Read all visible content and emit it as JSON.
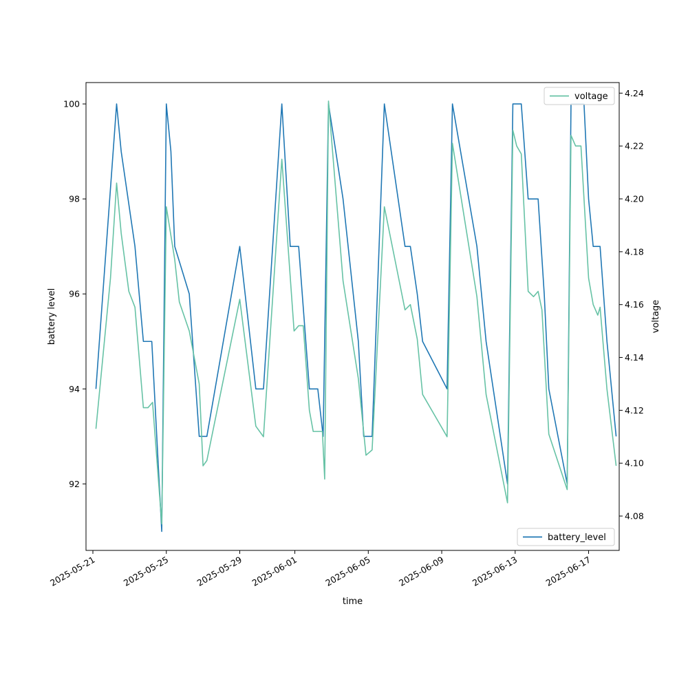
{
  "chart_data": {
    "type": "line",
    "xlabel": "time",
    "y1label": "battery level",
    "y2label": "voltage",
    "xlim": [
      "2025-05-20T15:00",
      "2025-06-18T16:00"
    ],
    "y1lim": [
      90.6,
      100.45
    ],
    "y2lim": [
      4.067,
      4.244
    ],
    "x_ticks": [
      "2025-05-21",
      "2025-05-25",
      "2025-05-29",
      "2025-06-01",
      "2025-06-05",
      "2025-06-09",
      "2025-06-13",
      "2025-06-17"
    ],
    "y1_ticks": [
      92,
      94,
      96,
      98,
      100
    ],
    "y2_ticks": [
      "4.08",
      "4.10",
      "4.12",
      "4.14",
      "4.16",
      "4.18",
      "4.20",
      "4.22",
      "4.24"
    ],
    "grid": false,
    "series": [
      {
        "name": "battery_level",
        "axis": "left",
        "color": "#1f77b4",
        "legend": "bottom-right",
        "points": [
          [
            "2025-05-21T04:00",
            94
          ],
          [
            "2025-05-22T07:00",
            100
          ],
          [
            "2025-05-22T13:00",
            99
          ],
          [
            "2025-05-23T07:00",
            97
          ],
          [
            "2025-05-23T18:00",
            95
          ],
          [
            "2025-05-24T05:00",
            95
          ],
          [
            "2025-05-24T18:00",
            91
          ],
          [
            "2025-05-25T00:00",
            100
          ],
          [
            "2025-05-25T06:00",
            99
          ],
          [
            "2025-05-25T11:00",
            97
          ],
          [
            "2025-05-26T06:00",
            96
          ],
          [
            "2025-05-26T19:00",
            93
          ],
          [
            "2025-05-27T05:00",
            93
          ],
          [
            "2025-05-29T00:00",
            97
          ],
          [
            "2025-05-29T21:00",
            94
          ],
          [
            "2025-05-30T07:00",
            94
          ],
          [
            "2025-05-31T07:00",
            100
          ],
          [
            "2025-05-31T18:00",
            97
          ],
          [
            "2025-06-01T05:00",
            97
          ],
          [
            "2025-06-01T19:00",
            94
          ],
          [
            "2025-06-02T06:00",
            94
          ],
          [
            "2025-06-02T13:00",
            93
          ],
          [
            "2025-06-02T20:00",
            100
          ],
          [
            "2025-06-03T15:00",
            98
          ],
          [
            "2025-06-04T11:00",
            95
          ],
          [
            "2025-06-04T18:00",
            93
          ],
          [
            "2025-06-05T05:00",
            93
          ],
          [
            "2025-06-05T21:00",
            100
          ],
          [
            "2025-06-07T00:00",
            97
          ],
          [
            "2025-06-07T07:00",
            97
          ],
          [
            "2025-06-07T16:00",
            96
          ],
          [
            "2025-06-07T23:00",
            95
          ],
          [
            "2025-06-09T07:00",
            94
          ],
          [
            "2025-06-09T14:00",
            100
          ],
          [
            "2025-06-10T22:00",
            97
          ],
          [
            "2025-06-11T10:00",
            95
          ],
          [
            "2025-06-12T14:00",
            92
          ],
          [
            "2025-06-12T21:00",
            100
          ],
          [
            "2025-06-13T08:00",
            100
          ],
          [
            "2025-06-13T17:00",
            98
          ],
          [
            "2025-06-14T06:00",
            98
          ],
          [
            "2025-06-14T14:00",
            96
          ],
          [
            "2025-06-14T20:00",
            94
          ],
          [
            "2025-06-15T20:00",
            92
          ],
          [
            "2025-06-16T01:00",
            100
          ],
          [
            "2025-06-16T18:00",
            100
          ],
          [
            "2025-06-17T00:00",
            98
          ],
          [
            "2025-06-17T06:00",
            97
          ],
          [
            "2025-06-17T15:00",
            97
          ],
          [
            "2025-06-18T00:00",
            95
          ],
          [
            "2025-06-18T12:00",
            93
          ]
        ]
      },
      {
        "name": "voltage",
        "axis": "right",
        "color": "#66c2a5",
        "legend": "top-right",
        "points": [
          [
            "2025-05-21T04:00",
            4.113
          ],
          [
            "2025-05-21T23:00",
            4.17
          ],
          [
            "2025-05-22T07:00",
            4.206
          ],
          [
            "2025-05-22T13:00",
            4.187
          ],
          [
            "2025-05-22T23:00",
            4.165
          ],
          [
            "2025-05-23T07:00",
            4.159
          ],
          [
            "2025-05-23T18:00",
            4.121
          ],
          [
            "2025-05-24T00:00",
            4.121
          ],
          [
            "2025-05-24T06:00",
            4.123
          ],
          [
            "2025-05-24T18:00",
            4.077
          ],
          [
            "2025-05-25T00:00",
            4.197
          ],
          [
            "2025-05-25T11:00",
            4.177
          ],
          [
            "2025-05-25T17:00",
            4.161
          ],
          [
            "2025-05-26T06:00",
            4.15
          ],
          [
            "2025-05-26T19:00",
            4.13
          ],
          [
            "2025-05-27T00:00",
            4.099
          ],
          [
            "2025-05-27T05:00",
            4.101
          ],
          [
            "2025-05-29T00:00",
            4.162
          ],
          [
            "2025-05-29T21:00",
            4.114
          ],
          [
            "2025-05-30T07:00",
            4.11
          ],
          [
            "2025-05-31T07:00",
            4.215
          ],
          [
            "2025-05-31T23:00",
            4.15
          ],
          [
            "2025-06-01T05:00",
            4.152
          ],
          [
            "2025-06-01T11:00",
            4.152
          ],
          [
            "2025-06-01T19:00",
            4.12
          ],
          [
            "2025-06-02T00:00",
            4.112
          ],
          [
            "2025-06-02T12:00",
            4.112
          ],
          [
            "2025-06-02T15:00",
            4.094
          ],
          [
            "2025-06-02T20:00",
            4.237
          ],
          [
            "2025-06-03T15:00",
            4.169
          ],
          [
            "2025-06-04T11:00",
            4.132
          ],
          [
            "2025-06-04T21:00",
            4.103
          ],
          [
            "2025-06-05T05:00",
            4.105
          ],
          [
            "2025-06-05T21:00",
            4.197
          ],
          [
            "2025-06-07T00:00",
            4.158
          ],
          [
            "2025-06-07T07:00",
            4.16
          ],
          [
            "2025-06-07T16:00",
            4.147
          ],
          [
            "2025-06-07T23:00",
            4.126
          ],
          [
            "2025-06-09T07:00",
            4.11
          ],
          [
            "2025-06-09T14:00",
            4.221
          ],
          [
            "2025-06-10T22:00",
            4.163
          ],
          [
            "2025-06-11T10:00",
            4.126
          ],
          [
            "2025-06-12T14:00",
            4.085
          ],
          [
            "2025-06-12T21:00",
            4.226
          ],
          [
            "2025-06-13T02:00",
            4.22
          ],
          [
            "2025-06-13T08:00",
            4.217
          ],
          [
            "2025-06-13T17:00",
            4.165
          ],
          [
            "2025-06-14T00:00",
            4.163
          ],
          [
            "2025-06-14T06:00",
            4.165
          ],
          [
            "2025-06-14T11:00",
            4.158
          ],
          [
            "2025-06-14T20:00",
            4.111
          ],
          [
            "2025-06-15T20:00",
            4.09
          ],
          [
            "2025-06-16T01:00",
            4.224
          ],
          [
            "2025-06-16T07:00",
            4.22
          ],
          [
            "2025-06-16T14:00",
            4.22
          ],
          [
            "2025-06-17T00:00",
            4.17
          ],
          [
            "2025-06-17T06:00",
            4.16
          ],
          [
            "2025-06-17T12:00",
            4.156
          ],
          [
            "2025-06-17T15:00",
            4.159
          ],
          [
            "2025-06-18T00:00",
            4.128
          ],
          [
            "2025-06-18T12:00",
            4.099
          ]
        ]
      }
    ]
  }
}
